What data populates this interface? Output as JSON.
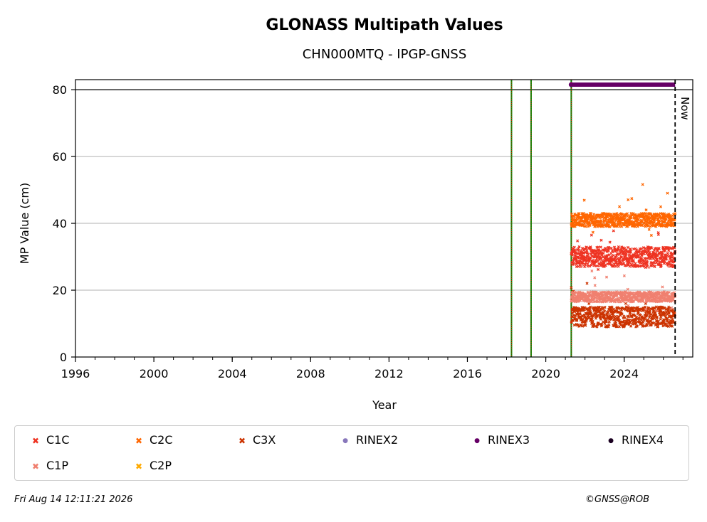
{
  "chart_data": {
    "type": "scatter",
    "title": "GLONASS Multipath Values",
    "subtitle": "CHN000MTQ - IPGP-GNSS",
    "xlabel": "Year",
    "ylabel": "MP Value (cm)",
    "xlim": [
      1996,
      2027.5
    ],
    "ylim": [
      0,
      83
    ],
    "xticks": [
      "1996",
      "2000",
      "2004",
      "2008",
      "2012",
      "2016",
      "2020",
      "2024"
    ],
    "yticks": [
      "0",
      "20",
      "40",
      "60",
      "80"
    ],
    "grid": "horizontal",
    "reference_line_y": 80,
    "now_label": "Now",
    "now_x": 2026.6,
    "event_lines_x": [
      2018.25,
      2019.25,
      2021.3
    ],
    "series": [
      {
        "name": "C1C",
        "color": "#ee3322",
        "marker": "x",
        "x_range": [
          2021.3,
          2026.6
        ],
        "level": 30,
        "spread": 3
      },
      {
        "name": "C2C",
        "color": "#ff6600",
        "marker": "x",
        "x_range": [
          2021.3,
          2026.6
        ],
        "level": 41,
        "spread": 2
      },
      {
        "name": "C3X",
        "color": "#cc3300",
        "marker": "x",
        "x_range": [
          2021.3,
          2026.6
        ],
        "level": 12,
        "spread": 3
      },
      {
        "name": "RINEX2",
        "color": "#8877bb",
        "marker": "dot"
      },
      {
        "name": "RINEX3",
        "color": "#660066",
        "marker": "dot",
        "x_range": [
          2021.3,
          2026.6
        ],
        "level": 81.5
      },
      {
        "name": "RINEX4",
        "color": "#1a0020",
        "marker": "dot"
      },
      {
        "name": "C1P",
        "color": "#f08070",
        "marker": "x",
        "x_range": [
          2021.3,
          2026.6
        ],
        "level": 18,
        "spread": 1.5
      },
      {
        "name": "C2P",
        "color": "#ffaa00",
        "marker": "x"
      }
    ],
    "legend_placement": "bottom"
  },
  "footer": {
    "timestamp": "Fri Aug 14 12:11:21 2026",
    "copyright": "©GNSS@ROB"
  }
}
